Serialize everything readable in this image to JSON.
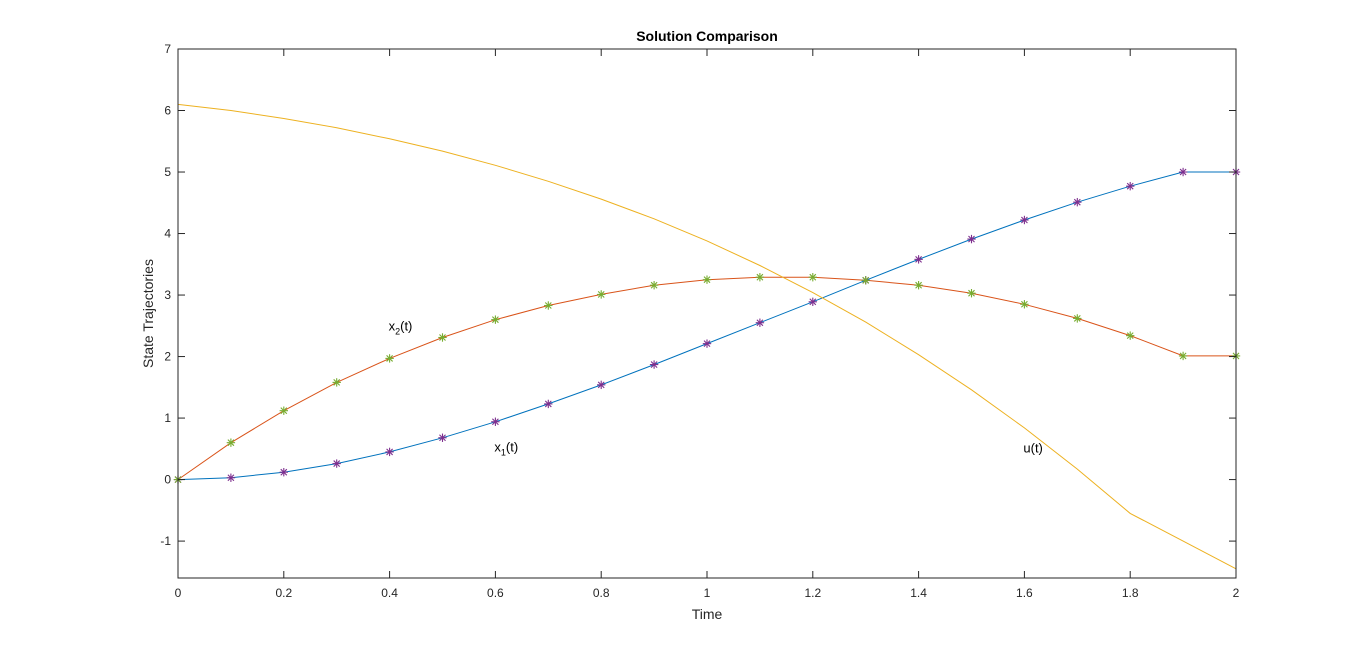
{
  "chart_data": {
    "type": "line",
    "title": "Solution Comparison",
    "xlabel": "Time",
    "ylabel": "State Trajectories",
    "xlim": [
      0,
      2
    ],
    "ylim": [
      -1.6,
      7
    ],
    "xticks": [
      0,
      0.2,
      0.4,
      0.6,
      0.8,
      1,
      1.2,
      1.4,
      1.6,
      1.8,
      2
    ],
    "xtick_labels": [
      "0",
      "0.2",
      "0.4",
      "0.6",
      "0.8",
      "1",
      "1.2",
      "1.4",
      "1.6",
      "1.8",
      "2"
    ],
    "yticks": [
      -1,
      0,
      1,
      2,
      3,
      4,
      5,
      6,
      7
    ],
    "ytick_labels": [
      "-1",
      "0",
      "1",
      "2",
      "3",
      "4",
      "5",
      "6",
      "7"
    ],
    "grid": false,
    "box": true,
    "series": [
      {
        "key": "x1",
        "color": "#0072BD",
        "marker_color": "#7E2F8E",
        "marker": "asterisk",
        "x": [
          0,
          0.1,
          0.2,
          0.3,
          0.4,
          0.5,
          0.6,
          0.7,
          0.8,
          0.9,
          1.0,
          1.1,
          1.2,
          1.3,
          1.4,
          1.5,
          1.6,
          1.7,
          1.8,
          1.9,
          2.0
        ],
        "values": [
          0,
          0.03,
          0.12,
          0.26,
          0.45,
          0.68,
          0.94,
          1.23,
          1.54,
          1.87,
          2.21,
          2.55,
          2.89,
          3.24,
          3.58,
          3.91,
          4.22,
          4.51,
          4.77,
          5.0,
          5.0
        ]
      },
      {
        "key": "x2",
        "color": "#D95319",
        "marker_color": "#77AC30",
        "marker": "asterisk",
        "x": [
          0,
          0.1,
          0.2,
          0.3,
          0.4,
          0.5,
          0.6,
          0.7,
          0.8,
          0.9,
          1.0,
          1.1,
          1.2,
          1.3,
          1.4,
          1.5,
          1.6,
          1.7,
          1.8,
          1.9,
          2.0
        ],
        "values": [
          0,
          0.6,
          1.12,
          1.58,
          1.97,
          2.31,
          2.6,
          2.83,
          3.01,
          3.16,
          3.25,
          3.29,
          3.29,
          3.24,
          3.16,
          3.03,
          2.85,
          2.62,
          2.34,
          2.01,
          2.01
        ]
      },
      {
        "key": "u",
        "color": "#EDB120",
        "x": [
          0,
          0.1,
          0.2,
          0.3,
          0.4,
          0.5,
          0.6,
          0.7,
          0.8,
          0.9,
          1.0,
          1.1,
          1.2,
          1.3,
          1.4,
          1.5,
          1.6,
          1.7,
          1.8,
          1.9,
          2.0
        ],
        "values": [
          6.1,
          6.0,
          5.87,
          5.72,
          5.54,
          5.34,
          5.11,
          4.85,
          4.56,
          4.24,
          3.88,
          3.48,
          3.04,
          2.56,
          2.03,
          1.46,
          0.84,
          0.17,
          -0.55,
          -1.0,
          -1.45
        ]
      }
    ],
    "annotations": [
      {
        "base": "x",
        "sub": "2",
        "suffix": "(t)",
        "x": 0.4,
        "y": 2.42
      },
      {
        "base": "x",
        "sub": "1",
        "suffix": "(t)",
        "x": 0.6,
        "y": 0.46
      },
      {
        "base": "u(t)",
        "sub": "",
        "suffix": "",
        "x": 1.6,
        "y": 0.44
      }
    ]
  }
}
